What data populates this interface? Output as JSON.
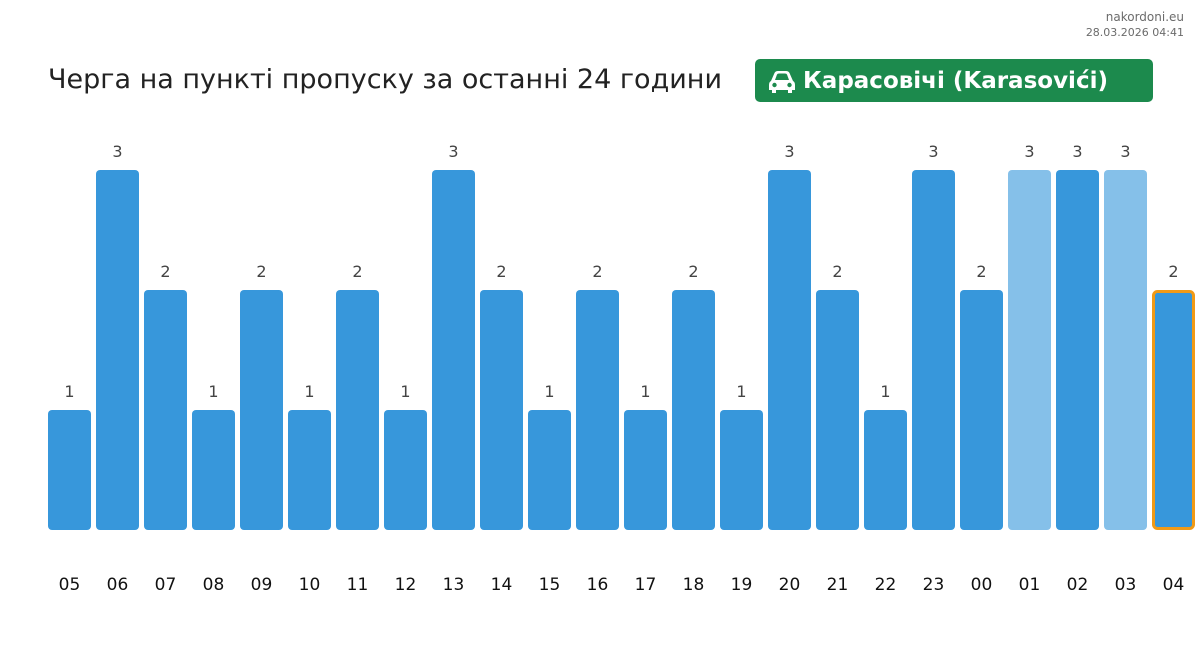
{
  "source": {
    "site": "nakordoni.eu",
    "timestamp": "28.03.2026 04:41"
  },
  "header": {
    "title": "Черга на пункті пропуску за останні 24 години",
    "checkpoint": "Карасовічі (Karasovići)",
    "checkpoint_icon": "car-icon"
  },
  "colors": {
    "bar": "#3797db",
    "bar_light": "#85c0e9",
    "highlight_border": "#f19a16",
    "badge": "#1c8a4d"
  },
  "chart_data": {
    "type": "bar",
    "categories": [
      "05",
      "06",
      "07",
      "08",
      "09",
      "10",
      "11",
      "12",
      "13",
      "14",
      "15",
      "16",
      "17",
      "18",
      "19",
      "20",
      "21",
      "22",
      "23",
      "00",
      "01",
      "02",
      "03",
      "04"
    ],
    "values": [
      1,
      3,
      2,
      1,
      2,
      1,
      2,
      1,
      3,
      2,
      1,
      2,
      1,
      2,
      1,
      3,
      2,
      1,
      3,
      2,
      3,
      3,
      3,
      2
    ],
    "light_bars": [
      "01",
      "03"
    ],
    "highlighted": "04",
    "ylim": [
      0,
      3
    ],
    "grid": false,
    "legend": "none",
    "data_labels": true
  }
}
